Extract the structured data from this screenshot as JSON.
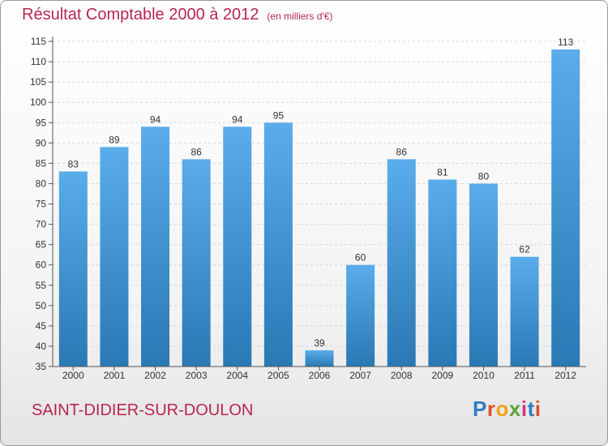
{
  "title": {
    "main": "Résultat Comptable 2000 à 2012",
    "unit": "(en milliers d'€)"
  },
  "commune": "SAINT-DIDIER-SUR-DOULON",
  "brand": {
    "letters": [
      "P",
      "r",
      "o",
      "x",
      "i",
      "t",
      "i"
    ],
    "colors": [
      "#2f7ec2",
      "#e24f2a",
      "#f0a21c",
      "#5aa53a",
      "#d8317d",
      "#2f7ec2",
      "#e24f2a"
    ]
  },
  "colors": {
    "bar_top": "#5aaceb",
    "bar_bottom": "#2a78b4",
    "title": "#b8254f",
    "axis": "#555555"
  },
  "chart_data": {
    "type": "bar",
    "title": "Résultat Comptable 2000 à 2012 (en milliers d'€)",
    "xlabel": "",
    "ylabel": "",
    "categories": [
      "2000",
      "2001",
      "2002",
      "2003",
      "2004",
      "2005",
      "2006",
      "2007",
      "2008",
      "2009",
      "2010",
      "2011",
      "2012"
    ],
    "values": [
      83,
      89,
      94,
      86,
      94,
      95,
      39,
      60,
      86,
      81,
      80,
      62,
      113
    ],
    "ylim": [
      35,
      115
    ],
    "yticks": [
      35,
      40,
      45,
      50,
      55,
      60,
      65,
      70,
      75,
      80,
      85,
      90,
      95,
      100,
      105,
      110,
      115
    ],
    "grid": true,
    "legend": "none"
  }
}
